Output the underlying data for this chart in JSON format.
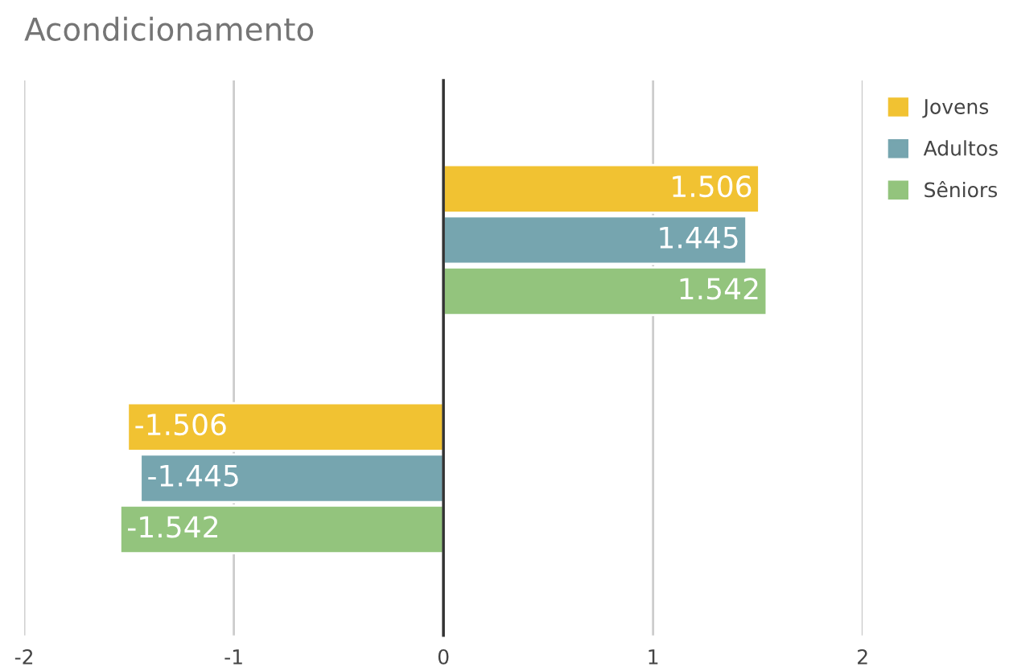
{
  "chart_data": {
    "type": "bar",
    "title": "Acondicionamento",
    "orientation": "horizontal",
    "categories": [
      null,
      null
    ],
    "series": [
      {
        "name": "Jovens",
        "color": "#f1c232",
        "values": [
          1.506,
          -1.506
        ]
      },
      {
        "name": "Adultos",
        "color": "#76a5af",
        "values": [
          1.445,
          -1.445
        ]
      },
      {
        "name": "Sêniors",
        "color": "#93c47d",
        "values": [
          1.542,
          -1.542
        ]
      }
    ],
    "xlim": [
      -2,
      2
    ],
    "xticks": [
      -2,
      -1,
      0,
      1,
      2
    ],
    "grid": "x",
    "legend": "top right",
    "data_labels": true
  }
}
